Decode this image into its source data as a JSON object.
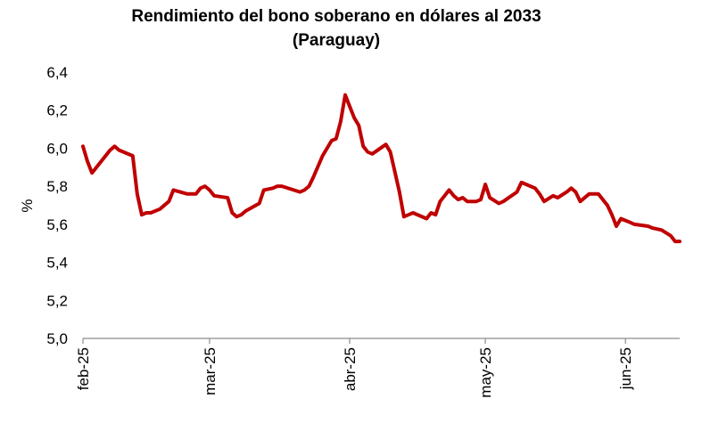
{
  "chart_data": {
    "type": "line",
    "title": "Rendimiento del bono soberano en dólares al 2033",
    "subtitle": "(Paraguay)",
    "ylabel": "%",
    "xlabel": "",
    "ylim": [
      5.0,
      6.4
    ],
    "y_ticks": [
      "5,0",
      "5,2",
      "5,4",
      "5,6",
      "5,8",
      "6,0",
      "6,2",
      "6,4"
    ],
    "x_ticks": [
      {
        "label": "feb-25",
        "date": "2025-02-01"
      },
      {
        "label": "mar-25",
        "date": "2025-03-01"
      },
      {
        "label": "abr-25",
        "date": "2025-04-01"
      },
      {
        "label": "may-25",
        "date": "2025-05-01"
      },
      {
        "label": "jun-25",
        "date": "2025-06-01"
      }
    ],
    "grid": false,
    "legend": "none",
    "line_color": "#C00000",
    "series": [
      {
        "x": [
          "2025-02-01",
          "2025-02-02",
          "2025-02-03",
          "2025-02-07",
          "2025-02-08",
          "2025-02-09",
          "2025-02-12",
          "2025-02-13",
          "2025-02-14",
          "2025-02-15",
          "2025-02-16",
          "2025-02-17",
          "2025-02-18",
          "2025-02-20",
          "2025-02-21",
          "2025-02-24",
          "2025-02-26",
          "2025-02-27",
          "2025-02-28",
          "2025-03-01",
          "2025-03-02",
          "2025-03-05",
          "2025-03-06",
          "2025-03-07",
          "2025-03-08",
          "2025-03-09",
          "2025-03-12",
          "2025-03-13",
          "2025-03-15",
          "2025-03-16",
          "2025-03-17",
          "2025-03-21",
          "2025-03-22",
          "2025-03-23",
          "2025-03-24",
          "2025-03-26",
          "2025-03-28",
          "2025-03-29",
          "2025-03-30",
          "2025-03-31",
          "2025-04-01",
          "2025-04-02",
          "2025-04-03",
          "2025-04-04",
          "2025-04-05",
          "2025-04-06",
          "2025-04-09",
          "2025-04-10",
          "2025-04-12",
          "2025-04-13",
          "2025-04-14",
          "2025-04-15",
          "2025-04-18",
          "2025-04-19",
          "2025-04-20",
          "2025-04-21",
          "2025-04-22",
          "2025-04-23",
          "2025-04-24",
          "2025-04-25",
          "2025-04-26",
          "2025-04-27",
          "2025-04-29",
          "2025-04-30",
          "2025-05-01",
          "2025-05-02",
          "2025-05-04",
          "2025-05-05",
          "2025-05-08",
          "2025-05-09",
          "2025-05-10",
          "2025-05-12",
          "2025-05-13",
          "2025-05-14",
          "2025-05-16",
          "2025-05-17",
          "2025-05-19",
          "2025-05-20",
          "2025-05-21",
          "2025-05-22",
          "2025-05-24",
          "2025-05-25",
          "2025-05-26",
          "2025-05-28",
          "2025-05-29",
          "2025-05-30",
          "2025-05-31",
          "2025-06-01",
          "2025-06-02",
          "2025-06-03",
          "2025-06-06",
          "2025-06-07",
          "2025-06-09",
          "2025-06-11",
          "2025-06-12",
          "2025-06-13"
        ],
        "values": [
          6.01,
          5.93,
          5.87,
          5.99,
          6.01,
          5.99,
          5.96,
          5.76,
          5.65,
          5.66,
          5.66,
          5.67,
          5.68,
          5.72,
          5.78,
          5.76,
          5.76,
          5.79,
          5.8,
          5.78,
          5.75,
          5.74,
          5.66,
          5.64,
          5.65,
          5.67,
          5.71,
          5.78,
          5.79,
          5.8,
          5.8,
          5.77,
          5.78,
          5.8,
          5.85,
          5.96,
          6.04,
          6.05,
          6.14,
          6.28,
          6.22,
          6.16,
          6.12,
          6.01,
          5.98,
          5.97,
          6.02,
          5.98,
          5.77,
          5.64,
          5.65,
          5.66,
          5.63,
          5.66,
          5.65,
          5.72,
          5.75,
          5.78,
          5.75,
          5.73,
          5.74,
          5.72,
          5.72,
          5.73,
          5.81,
          5.74,
          5.71,
          5.72,
          5.77,
          5.82,
          5.81,
          5.79,
          5.76,
          5.72,
          5.75,
          5.74,
          5.77,
          5.79,
          5.77,
          5.72,
          5.76,
          5.76,
          5.76,
          5.7,
          5.65,
          5.59,
          5.63,
          5.62,
          5.61,
          5.6,
          5.59,
          5.58,
          5.57,
          5.54,
          5.51,
          5.51
        ]
      }
    ]
  }
}
